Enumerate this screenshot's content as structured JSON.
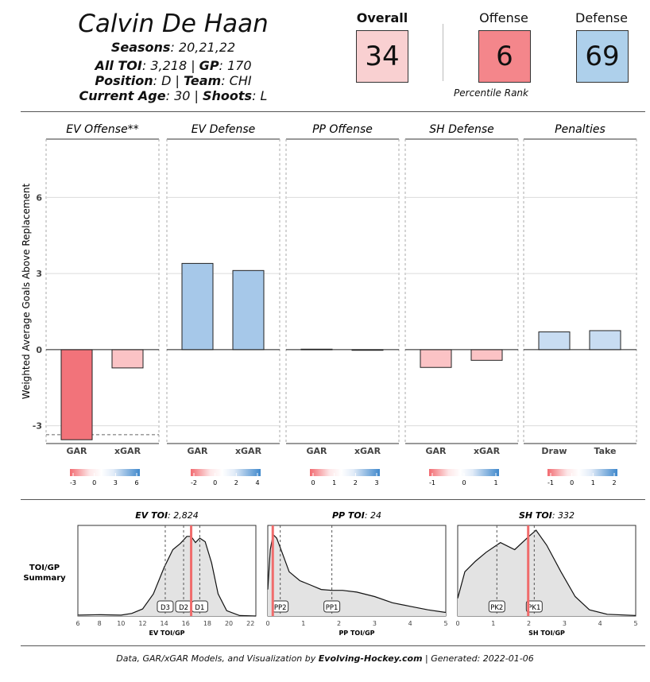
{
  "player": {
    "name": "Calvin De Haan",
    "seasons_label": "Seasons",
    "seasons": ": 20,21,22",
    "toi_label": "All TOI",
    "toi": ": 3,218 | ",
    "gp_label": "GP",
    "gp": ": 170",
    "position_label": "Position",
    "position": ": D | ",
    "team_label": "Team",
    "team": ": CHI",
    "age_label": "Current Age",
    "age": ": 30 | ",
    "shoots_label": "Shoots",
    "shoots": ": L"
  },
  "ranks": {
    "overall_label": "Overall",
    "overall": "34",
    "offense_label": "Offense",
    "offense": "6",
    "defense_label": "Defense",
    "defense": "69",
    "caption": "Percentile Rank"
  },
  "colors": {
    "overall_bg": "#f9d0d1",
    "offense_bg": "#f4868b",
    "defense_bg": "#aed0eb",
    "red_strong": "#f2737a",
    "red_light": "#fbc3c5",
    "blue_mid": "#a6c8e9",
    "blue_light": "#c8dcf2",
    "toi_line": "#f06c6c"
  },
  "chart_data": [
    {
      "type": "bar",
      "ylabel": "Weighted Average Goals Above Replacement",
      "ylim": [
        -3.7,
        8.3
      ],
      "yticks": [
        -3,
        0,
        3,
        6
      ],
      "panels": [
        {
          "title": "EV Offense**",
          "categories": [
            "GAR",
            "xGAR"
          ],
          "values": [
            -3.55,
            -0.72
          ],
          "legend_ticks": [
            "-3",
            "0",
            "3",
            "6"
          ],
          "replacement_line": -3.35
        },
        {
          "title": "EV Defense",
          "categories": [
            "GAR",
            "xGAR"
          ],
          "values": [
            3.4,
            3.12
          ],
          "legend_ticks": [
            "-2",
            "0",
            "2",
            "4"
          ]
        },
        {
          "title": "PP Offense",
          "categories": [
            "GAR",
            "xGAR"
          ],
          "values": [
            0.02,
            -0.02
          ],
          "legend_ticks": [
            "0",
            "1",
            "2",
            "3"
          ]
        },
        {
          "title": "SH Defense",
          "categories": [
            "GAR",
            "xGAR"
          ],
          "values": [
            -0.7,
            -0.42
          ],
          "legend_ticks": [
            "-1",
            "0",
            "1"
          ]
        },
        {
          "title": "Penalties",
          "categories": [
            "Draw",
            "Take"
          ],
          "values": [
            0.7,
            0.75
          ],
          "legend_ticks": [
            "-1",
            "0",
            "1",
            "2"
          ]
        }
      ]
    },
    {
      "type": "area",
      "side_label": [
        "TOI/GP",
        "Summary"
      ],
      "panels": [
        {
          "title_bold": "EV TOI",
          "title_rest": ": 2,824",
          "xlabel": "EV TOI/GP",
          "xlim": [
            6,
            22.5
          ],
          "xticks": [
            6,
            8,
            10,
            12,
            14,
            16,
            18,
            20,
            22
          ],
          "density": [
            [
              6,
              0.01
            ],
            [
              8,
              0.015
            ],
            [
              10,
              0.01
            ],
            [
              11,
              0.03
            ],
            [
              12,
              0.08
            ],
            [
              13,
              0.25
            ],
            [
              14,
              0.55
            ],
            [
              14.8,
              0.75
            ],
            [
              15.5,
              0.82
            ],
            [
              16.1,
              0.9
            ],
            [
              16.5,
              0.9
            ],
            [
              16.9,
              0.83
            ],
            [
              17.3,
              0.88
            ],
            [
              17.8,
              0.84
            ],
            [
              18.4,
              0.6
            ],
            [
              19,
              0.25
            ],
            [
              19.8,
              0.06
            ],
            [
              21,
              0.005
            ],
            [
              22.5,
              0
            ]
          ],
          "markers": [
            {
              "label": "D3",
              "x": 14.1
            },
            {
              "label": "D2",
              "x": 15.8
            },
            {
              "label": "D1",
              "x": 17.3
            }
          ],
          "player_value": 16.5
        },
        {
          "title_bold": "PP TOI",
          "title_rest": ": 24",
          "xlabel": "PP TOI/GP",
          "xlim": [
            0,
            5
          ],
          "xticks": [
            0,
            1,
            2,
            3,
            4,
            5
          ],
          "density": [
            [
              0,
              0.3
            ],
            [
              0.07,
              0.75
            ],
            [
              0.15,
              0.92
            ],
            [
              0.25,
              0.88
            ],
            [
              0.4,
              0.72
            ],
            [
              0.6,
              0.5
            ],
            [
              0.9,
              0.4
            ],
            [
              1.2,
              0.35
            ],
            [
              1.5,
              0.3
            ],
            [
              1.8,
              0.29
            ],
            [
              2.1,
              0.29
            ],
            [
              2.5,
              0.27
            ],
            [
              3,
              0.22
            ],
            [
              3.5,
              0.15
            ],
            [
              4,
              0.11
            ],
            [
              4.5,
              0.07
            ],
            [
              5,
              0.04
            ]
          ],
          "markers": [
            {
              "label": "PP2",
              "x": 0.35
            },
            {
              "label": "PP1",
              "x": 1.8
            }
          ],
          "player_value": 0.14
        },
        {
          "title_bold": "SH TOI",
          "title_rest": ": 332",
          "xlabel": "SH TOI/GP",
          "xlim": [
            0,
            5
          ],
          "xticks": [
            0,
            1,
            2,
            3,
            4,
            5
          ],
          "density": [
            [
              0,
              0.2
            ],
            [
              0.2,
              0.5
            ],
            [
              0.5,
              0.62
            ],
            [
              0.8,
              0.72
            ],
            [
              1.2,
              0.83
            ],
            [
              1.6,
              0.75
            ],
            [
              2,
              0.9
            ],
            [
              2.2,
              0.97
            ],
            [
              2.5,
              0.8
            ],
            [
              2.9,
              0.5
            ],
            [
              3.3,
              0.22
            ],
            [
              3.7,
              0.07
            ],
            [
              4.2,
              0.02
            ],
            [
              5,
              0.005
            ]
          ],
          "markers": [
            {
              "label": "PK2",
              "x": 1.1
            },
            {
              "label": "PK1",
              "x": 2.15
            }
          ],
          "player_value": 1.98
        }
      ]
    }
  ],
  "footer": {
    "prefix": "Data, GAR/xGAR Models, and Visualization by ",
    "site": "Evolving-Hockey.com",
    "suffix": " | Generated: 2022-01-06"
  }
}
